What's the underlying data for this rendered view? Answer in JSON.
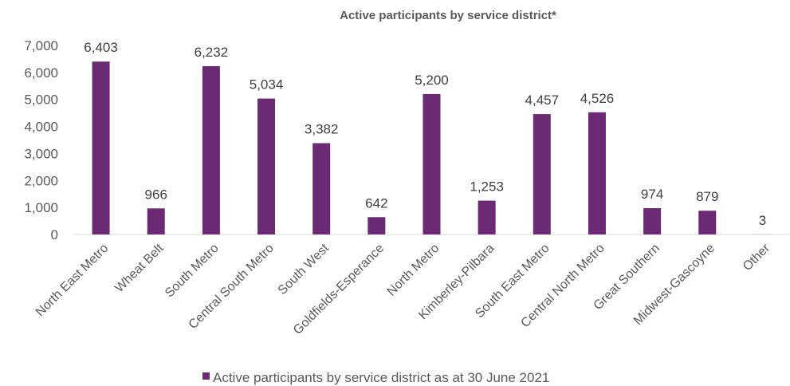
{
  "chart_data": {
    "type": "bar",
    "title": "Active participants by service district*",
    "categories": [
      "North East Metro",
      "Wheat Belt",
      "South Metro",
      "Central South Metro",
      "South West",
      "Goldfields-Esperance",
      "North Metro",
      "Kimberley-Pilbara",
      "South East Metro",
      "Central North Metro",
      "Great Southern",
      "Midwest-Gascoyne",
      "Other"
    ],
    "series": [
      {
        "name": "Active participants by service district as at 30 June 2021",
        "color": "#6b2a73",
        "values": [
          6403,
          966,
          6232,
          5034,
          3382,
          642,
          5200,
          1253,
          4457,
          4526,
          974,
          879,
          3
        ],
        "labels": [
          "6,403",
          "966",
          "6,232",
          "5,034",
          "3,382",
          "642",
          "5,200",
          "1,253",
          "4,457",
          "4,526",
          "974",
          "879",
          "3"
        ]
      }
    ],
    "ylim": [
      0,
      7000
    ],
    "yticks": [
      "0",
      "1,000",
      "2,000",
      "3,000",
      "4,000",
      "5,000",
      "6,000",
      "7,000"
    ],
    "xlabel": "",
    "ylabel": "",
    "grid": false,
    "legend_position": "bottom"
  }
}
